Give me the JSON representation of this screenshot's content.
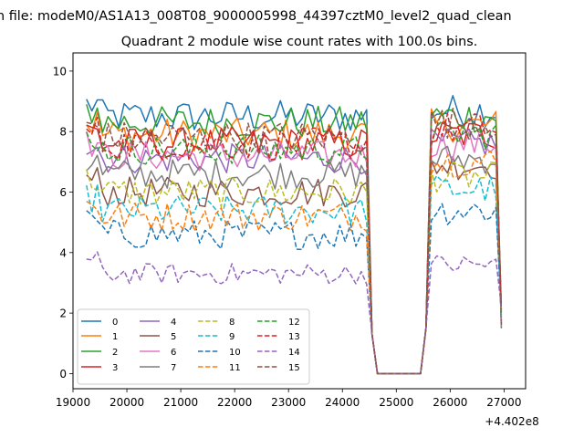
{
  "figure": {
    "suptitle": "n file: modeM0/AS1A13_008T08_9000005998_44397cztM0_level2_quad_clean",
    "title": "Quadrant 2 module wise count rates with 100.0s bins.",
    "offset_label": "+4.402e8"
  },
  "chart_data": {
    "type": "line",
    "title": "Quadrant 2 module wise count rates with 100.0s bins.",
    "xlim": [
      19000,
      27400
    ],
    "ylim": [
      -0.5,
      10.6
    ],
    "x_offset": 440200000,
    "x_ticks": [
      19000,
      20000,
      21000,
      22000,
      23000,
      24000,
      25000,
      26000,
      27000
    ],
    "x_tick_labels": [
      "19000",
      "20000",
      "21000",
      "22000",
      "23000",
      "24000",
      "25000",
      "26000",
      "27000"
    ],
    "y_ticks": [
      0,
      2,
      4,
      6,
      8,
      10
    ],
    "y_tick_labels": [
      "0",
      "2",
      "4",
      "6",
      "8",
      "10"
    ],
    "legend_position": "lower-left",
    "bin_size_s": 100,
    "x_start": 19250,
    "x_step": 100,
    "gap": {
      "start": 24550,
      "end": 25550
    },
    "series": [
      {
        "name": "0",
        "color": "#1f77b4",
        "dash": "solid",
        "level_pre": 8.5,
        "level_post": 8.7
      },
      {
        "name": "1",
        "color": "#ff7f0e",
        "dash": "solid",
        "level_pre": 7.9,
        "level_post": 8.2
      },
      {
        "name": "2",
        "color": "#2ca02c",
        "dash": "solid",
        "level_pre": 8.3,
        "level_post": 8.5
      },
      {
        "name": "3",
        "color": "#d62728",
        "dash": "solid",
        "level_pre": 7.6,
        "level_post": 7.9
      },
      {
        "name": "4",
        "color": "#9467bd",
        "dash": "solid",
        "level_pre": 7.1,
        "level_post": 7.6
      },
      {
        "name": "5",
        "color": "#8c564b",
        "dash": "solid",
        "level_pre": 6.0,
        "level_post": 6.9
      },
      {
        "name": "6",
        "color": "#e377c2",
        "dash": "solid",
        "level_pre": 7.2,
        "level_post": 7.6
      },
      {
        "name": "7",
        "color": "#7f7f7f",
        "dash": "solid",
        "level_pre": 6.6,
        "level_post": 7.1
      },
      {
        "name": "8",
        "color": "#bcbd22",
        "dash": "dashed",
        "level_pre": 6.0,
        "level_post": 6.5
      },
      {
        "name": "9",
        "color": "#17becf",
        "dash": "dashed",
        "level_pre": 5.4,
        "level_post": 6.1
      },
      {
        "name": "10",
        "color": "#1f77b4",
        "dash": "dashed",
        "level_pre": 4.6,
        "level_post": 5.4
      },
      {
        "name": "11",
        "color": "#ff7f0e",
        "dash": "dashed",
        "level_pre": 5.2,
        "level_post": 7.0
      },
      {
        "name": "12",
        "color": "#2ca02c",
        "dash": "dashed",
        "level_pre": 7.4,
        "level_post": 7.9
      },
      {
        "name": "13",
        "color": "#d62728",
        "dash": "dashed",
        "level_pre": 7.6,
        "level_post": 8.1
      },
      {
        "name": "14",
        "color": "#9467bd",
        "dash": "dashed",
        "level_pre": 3.3,
        "level_post": 3.6
      },
      {
        "name": "15",
        "color": "#8c564b",
        "dash": "dashed",
        "level_pre": 7.8,
        "level_post": 8.3
      }
    ]
  }
}
